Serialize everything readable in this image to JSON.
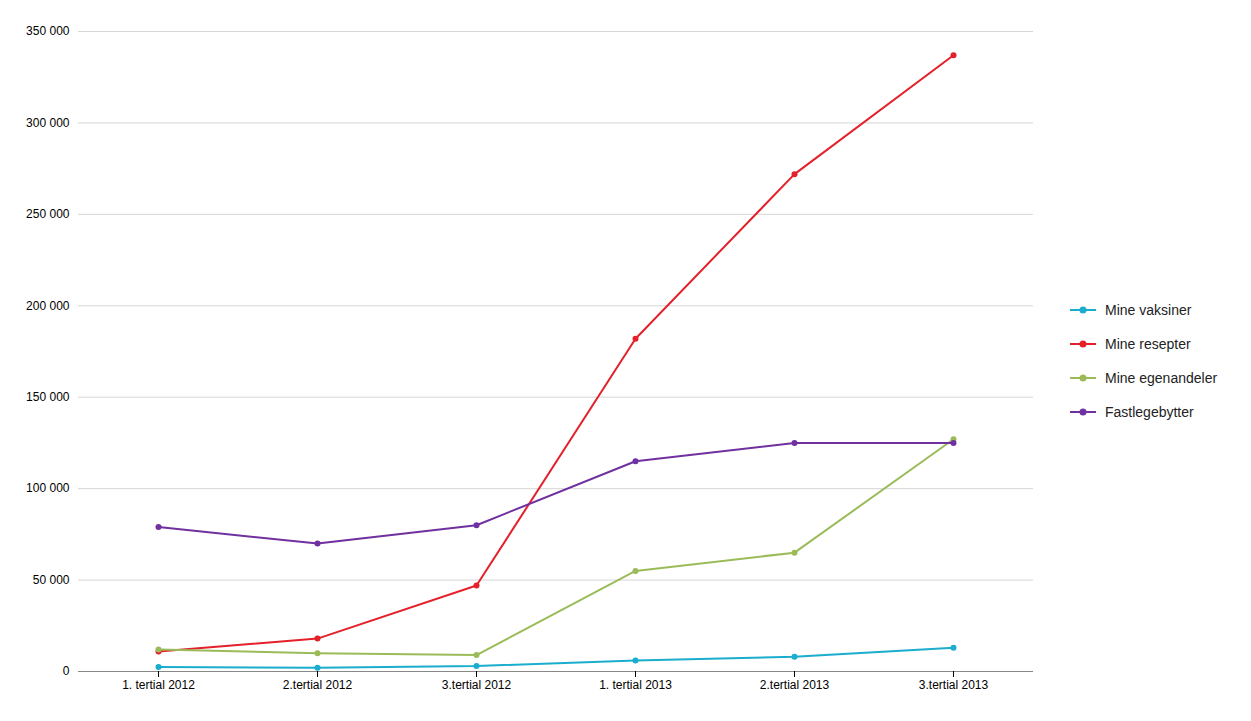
{
  "chart_data": {
    "type": "line",
    "categories": [
      "1. tertial 2012",
      "2.tertial 2012",
      "3.tertial 2012",
      "1. tertial 2013",
      "2.tertial 2013",
      "3.tertial 2013"
    ],
    "series": [
      {
        "name": "Mine vaksiner",
        "color": "#1aadce",
        "values": [
          2500,
          2000,
          3000,
          6000,
          8000,
          13000
        ]
      },
      {
        "name": "Mine resepter",
        "color": "#e4202a",
        "values": [
          11000,
          18000,
          47000,
          182000,
          272000,
          337000
        ]
      },
      {
        "name": "Mine egenandeler",
        "color": "#9bbb59",
        "values": [
          12000,
          10000,
          9000,
          55000,
          65000,
          127000
        ]
      },
      {
        "name": "Fastlegebytter",
        "color": "#7030a0",
        "values": [
          79000,
          70000,
          80000,
          115000,
          125000,
          125000
        ]
      }
    ],
    "ylim": [
      0,
      350000
    ],
    "yticks": [
      0,
      {
        "value": 50000,
        "label": "50 000"
      },
      {
        "value": 100000,
        "label": "100 000"
      },
      {
        "value": 150000,
        "label": "150 000"
      },
      {
        "value": 200000,
        "label": "200 000"
      },
      {
        "value": 250000,
        "label": "250 000"
      },
      {
        "value": 300000,
        "label": "300 000"
      },
      {
        "value": 350000,
        "label": "350 000"
      }
    ],
    "grid": true,
    "legend": "right",
    "marker": "circle"
  }
}
